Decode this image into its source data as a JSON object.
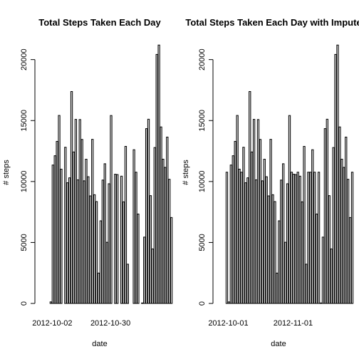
{
  "chart_data": [
    {
      "type": "bar",
      "title": "Total Steps Taken Each Day",
      "xlabel": "date",
      "ylabel": "# steps",
      "ylim": [
        0,
        21500
      ],
      "yticks": [
        0,
        5000,
        10000,
        15000,
        20000
      ],
      "xtick_labels": [
        {
          "label": "2012-10-02",
          "index": 1
        },
        {
          "label": "2012-10-30",
          "index": 29
        }
      ],
      "values": [
        0,
        126,
        11352,
        12116,
        13294,
        15420,
        11015,
        0,
        12811,
        9900,
        10304,
        17382,
        12426,
        15098,
        10139,
        15084,
        13452,
        10056,
        11829,
        10395,
        8821,
        13460,
        8918,
        8355,
        2492,
        6778,
        10119,
        11458,
        5018,
        9819,
        15414,
        0,
        10600,
        10571,
        0,
        10439,
        8334,
        12883,
        3219,
        0,
        0,
        12608,
        10765,
        7336,
        0,
        41,
        5441,
        14339,
        15110,
        8841,
        4472,
        12787,
        20427,
        21194,
        14478,
        11834,
        11162,
        13646,
        10183,
        7047,
        0
      ]
    },
    {
      "type": "bar",
      "title": "Total Steps Taken Each Day with Imputed",
      "xlabel": "date",
      "ylabel": "# steps",
      "ylim": [
        0,
        21500
      ],
      "yticks": [
        0,
        5000,
        10000,
        15000,
        20000
      ],
      "xtick_labels": [
        {
          "label": "2012-10-01",
          "index": 0
        },
        {
          "label": "2012-11-01",
          "index": 31
        }
      ],
      "values": [
        10766,
        126,
        11352,
        12116,
        13294,
        15420,
        11015,
        10766,
        12811,
        9900,
        10304,
        17382,
        12426,
        15098,
        10139,
        15084,
        13452,
        10056,
        11829,
        10395,
        8821,
        13460,
        8918,
        8355,
        2492,
        6778,
        10119,
        11458,
        5018,
        9819,
        15414,
        10766,
        10600,
        10571,
        10766,
        10439,
        8334,
        12883,
        3219,
        10766,
        10766,
        12608,
        10765,
        7336,
        10766,
        41,
        5441,
        14339,
        15110,
        8841,
        4472,
        12787,
        20427,
        21194,
        14478,
        11834,
        11162,
        13646,
        10183,
        7047,
        10766
      ]
    }
  ]
}
